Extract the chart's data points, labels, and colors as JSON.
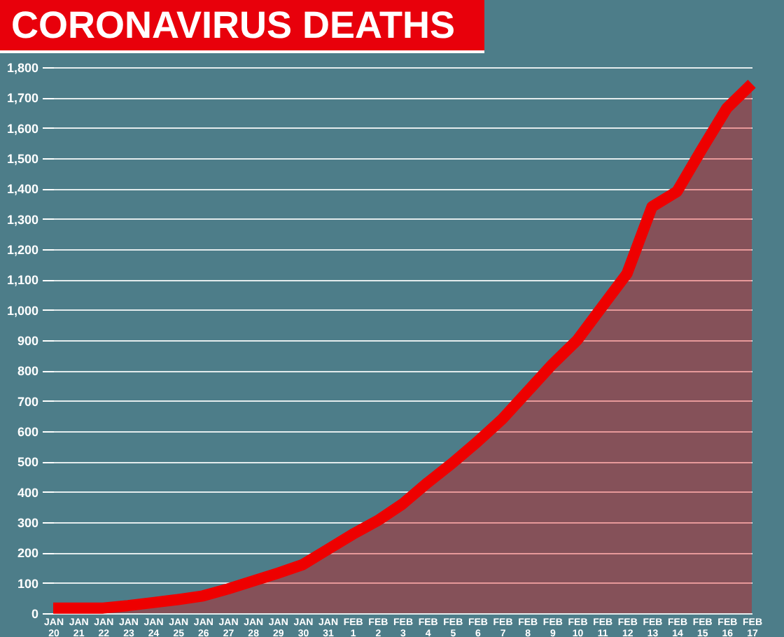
{
  "chart_data": {
    "type": "area",
    "title": "CORONAVIRUS DEATHS",
    "categories": [
      "JAN 20",
      "JAN 21",
      "JAN 22",
      "JAN 23",
      "JAN 24",
      "JAN 25",
      "JAN 26",
      "JAN 27",
      "JAN 28",
      "JAN 29",
      "JAN 30",
      "JAN 31",
      "FEB 1",
      "FEB 2",
      "FEB 3",
      "FEB 4",
      "FEB 5",
      "FEB 6",
      "FEB 7",
      "FEB 8",
      "FEB 9",
      "FEB 10",
      "FEB 11",
      "FEB 12",
      "FEB 13",
      "FEB 14",
      "FEB 15",
      "FEB 16",
      "FEB 17"
    ],
    "series": [
      {
        "color": "#ee0000",
        "values": [
          17,
          17,
          17,
          25,
          35,
          45,
          57,
          80,
          106,
          132,
          160,
          210,
          260,
          305,
          360,
          430,
          495,
          565,
          640,
          730,
          820,
          900,
          1010,
          1120,
          1340,
          1390,
          1530,
          1665,
          1745
        ]
      }
    ],
    "ylim": [
      0,
      1800
    ],
    "yticks": [
      0,
      100,
      200,
      300,
      400,
      500,
      600,
      700,
      800,
      900,
      {
        "value": 1000,
        "label": "1,000"
      },
      {
        "value": 1100,
        "label": "1,100"
      },
      {
        "value": 1200,
        "label": "1,200"
      },
      {
        "value": 1300,
        "label": "1,300"
      },
      {
        "value": 1400,
        "label": "1,400"
      },
      {
        "value": 1500,
        "label": "1,500"
      },
      {
        "value": 1600,
        "label": "1,600"
      },
      {
        "value": 1700,
        "label": "1,700"
      },
      {
        "value": 1800,
        "label": "1,800"
      }
    ],
    "grid": "y",
    "legend": false,
    "marker": "none",
    "line_style": "solid"
  }
}
